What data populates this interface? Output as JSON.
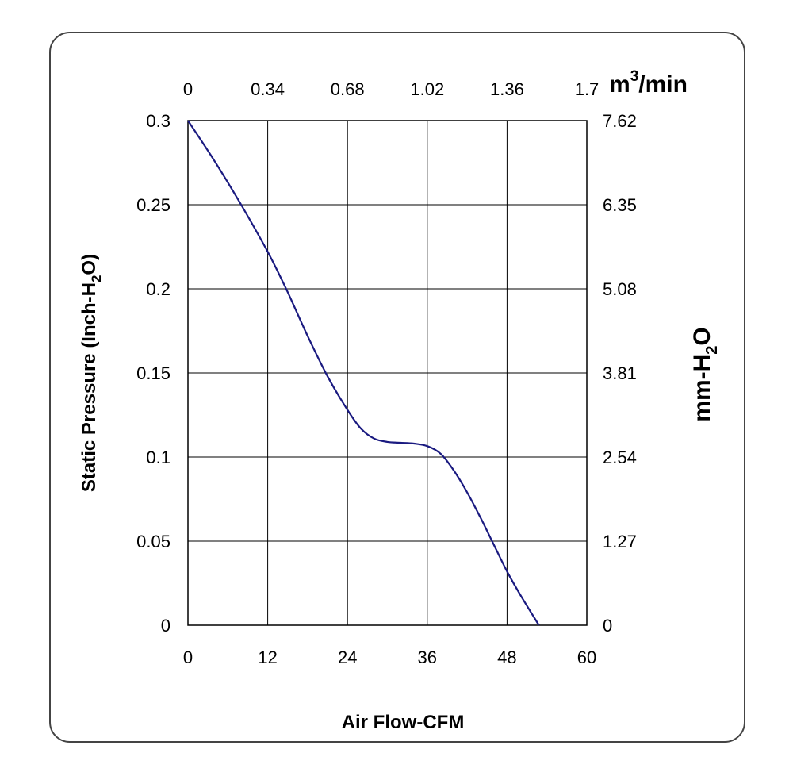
{
  "chart_data": {
    "type": "line",
    "x_axis_bottom": {
      "label": "Air Flow-CFM",
      "range": [
        0,
        60
      ],
      "ticks": [
        "0",
        "12",
        "24",
        "36",
        "48",
        "60"
      ]
    },
    "x_axis_top": {
      "unit_base": "m",
      "unit_sup": "3",
      "unit_rest": "/min",
      "ticks": [
        "0",
        "0.34",
        "0.68",
        "1.02",
        "1.36",
        "1.7"
      ]
    },
    "y_axis_left": {
      "label_main": "Static Pressure (Inch-H",
      "label_sub": "2",
      "label_end": "O)",
      "range": [
        0,
        0.3
      ],
      "ticks": [
        "0",
        "0.05",
        "0.1",
        "0.15",
        "0.2",
        "0.25",
        "0.3"
      ]
    },
    "y_axis_right": {
      "label_main": "mm-H",
      "label_sub": "2",
      "label_end": "O",
      "ticks": [
        "0",
        "1.27",
        "2.54",
        "3.81",
        "5.08",
        "6.35",
        "7.62"
      ]
    },
    "grid": true,
    "line_color": "#1a1a80",
    "series": [
      {
        "x": [
          0,
          4,
          8,
          12,
          15,
          18,
          21,
          24,
          26,
          28,
          30,
          32,
          34,
          36,
          38,
          40,
          42,
          44,
          46,
          48,
          50,
          52.8
        ],
        "y": [
          0.3,
          0.276,
          0.25,
          0.222,
          0.198,
          0.172,
          0.148,
          0.128,
          0.117,
          0.111,
          0.109,
          0.1085,
          0.108,
          0.1065,
          0.102,
          0.092,
          0.079,
          0.064,
          0.048,
          0.032,
          0.018,
          0.0
        ]
      }
    ]
  }
}
